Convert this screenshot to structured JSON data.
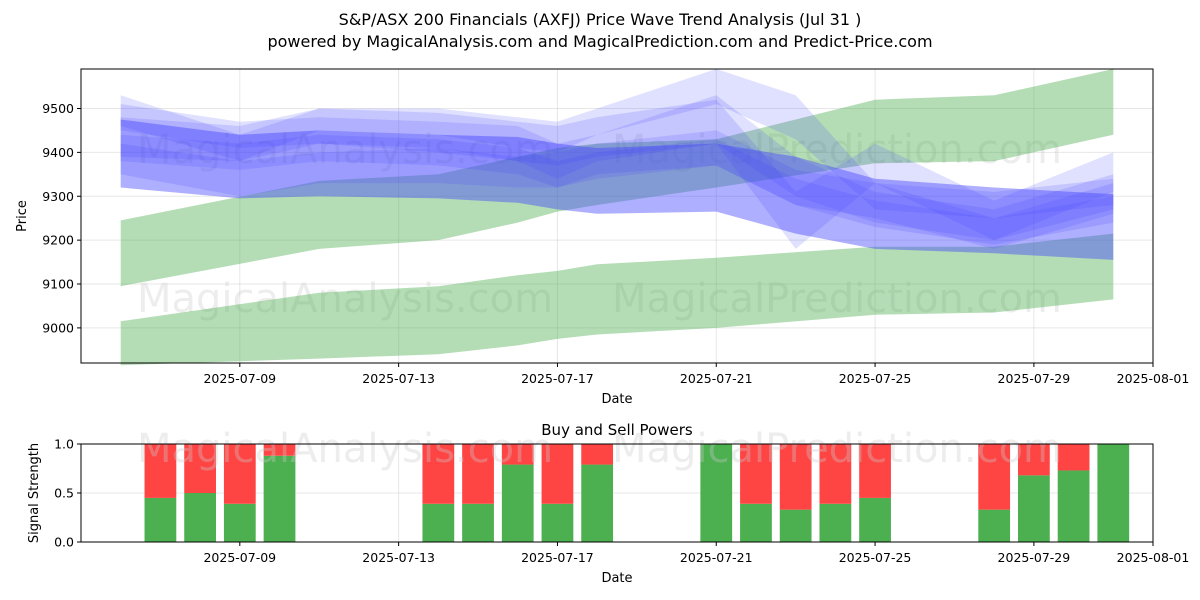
{
  "chart_data": [
    {
      "type": "area",
      "title": "S&P/ASX 200 Financials (AXFJ) Price Wave Trend Analysis (Jul 31 )",
      "subtitle": "powered by MagicalAnalysis.com and MagicalPrediction.com and Predict-Price.com",
      "xlabel": "Date",
      "ylabel": "Price",
      "xlim": [
        "2025-07-05",
        "2025-08-01"
      ],
      "ylim": [
        8920,
        9590
      ],
      "x_ticks": [
        "2025-07-09",
        "2025-07-13",
        "2025-07-17",
        "2025-07-21",
        "2025-07-25",
        "2025-07-29",
        "2025-08-01"
      ],
      "y_ticks": [
        9000,
        9100,
        9200,
        9300,
        9400,
        9500
      ],
      "grid": true,
      "watermarks": [
        "MagicalAnalysis.com",
        "MagicalPrediction.com"
      ],
      "colors": {
        "trend_band": "#4caf50",
        "wave_band": "#4040ff"
      },
      "trend_bands": [
        {
          "name": "upper-trend-channel",
          "x": [
            "2025-07-06",
            "2025-07-11",
            "2025-07-14",
            "2025-07-16",
            "2025-07-17",
            "2025-07-18",
            "2025-07-21",
            "2025-07-25",
            "2025-07-28",
            "2025-07-31"
          ],
          "upper": [
            9245,
            9335,
            9350,
            9390,
            9410,
            9420,
            9430,
            9520,
            9530,
            9590
          ],
          "lower": [
            9095,
            9180,
            9200,
            9240,
            9265,
            9280,
            9320,
            9375,
            9380,
            9440
          ]
        },
        {
          "name": "lower-trend-channel",
          "x": [
            "2025-07-06",
            "2025-07-11",
            "2025-07-14",
            "2025-07-16",
            "2025-07-17",
            "2025-07-18",
            "2025-07-21",
            "2025-07-25",
            "2025-07-28",
            "2025-07-31"
          ],
          "upper": [
            9015,
            9080,
            9095,
            9120,
            9130,
            9145,
            9160,
            9185,
            9185,
            9215
          ],
          "lower": [
            8915,
            8930,
            8940,
            8960,
            8975,
            8985,
            9000,
            9030,
            9035,
            9065
          ]
        }
      ],
      "wave_bands": [
        {
          "name": "wave-1",
          "x": [
            "2025-07-06",
            "2025-07-09",
            "2025-07-11",
            "2025-07-14",
            "2025-07-16",
            "2025-07-17",
            "2025-07-18",
            "2025-07-21",
            "2025-07-23",
            "2025-07-25",
            "2025-07-28",
            "2025-07-31"
          ],
          "upper": [
            9475,
            9440,
            9450,
            9440,
            9435,
            9420,
            9410,
            9420,
            9390,
            9340,
            9320,
            9305
          ],
          "lower": [
            9320,
            9295,
            9300,
            9295,
            9285,
            9270,
            9260,
            9265,
            9215,
            9180,
            9170,
            9155
          ]
        },
        {
          "name": "wave-2",
          "x": [
            "2025-07-06",
            "2025-07-09",
            "2025-07-11",
            "2025-07-14",
            "2025-07-16",
            "2025-07-17",
            "2025-07-18",
            "2025-07-21",
            "2025-07-23",
            "2025-07-25",
            "2025-07-28",
            "2025-07-31"
          ],
          "upper": [
            9510,
            9470,
            9480,
            9470,
            9460,
            9420,
            9440,
            9530,
            9390,
            9310,
            9270,
            9350
          ],
          "lower": [
            9450,
            9410,
            9420,
            9400,
            9380,
            9340,
            9380,
            9420,
            9300,
            9240,
            9200,
            9270
          ]
        },
        {
          "name": "wave-3",
          "x": [
            "2025-07-06",
            "2025-07-09",
            "2025-07-11",
            "2025-07-14",
            "2025-07-16",
            "2025-07-17",
            "2025-07-18",
            "2025-07-21",
            "2025-07-23",
            "2025-07-25",
            "2025-07-28",
            "2025-07-31"
          ],
          "upper": [
            9420,
            9380,
            9400,
            9410,
            9390,
            9400,
            9420,
            9450,
            9360,
            9330,
            9250,
            9330
          ],
          "lower": [
            9350,
            9300,
            9330,
            9330,
            9320,
            9320,
            9350,
            9370,
            9280,
            9250,
            9180,
            9260
          ]
        },
        {
          "name": "wave-4",
          "x": [
            "2025-07-06",
            "2025-07-09",
            "2025-07-11",
            "2025-07-14",
            "2025-07-16",
            "2025-07-17",
            "2025-07-18",
            "2025-07-21",
            "2025-07-23",
            "2025-07-25",
            "2025-07-28",
            "2025-07-31"
          ],
          "upper": [
            9480,
            9460,
            9500,
            9490,
            9470,
            9460,
            9480,
            9520,
            9310,
            9420,
            9290,
            9400
          ],
          "lower": [
            9390,
            9380,
            9420,
            9410,
            9380,
            9370,
            9390,
            9420,
            9180,
            9330,
            9200,
            9310
          ]
        },
        {
          "name": "wave-5",
          "x": [
            "2025-07-06",
            "2025-07-09",
            "2025-07-11",
            "2025-07-14",
            "2025-07-16",
            "2025-07-17",
            "2025-07-18",
            "2025-07-21",
            "2025-07-23",
            "2025-07-25",
            "2025-07-28",
            "2025-07-31"
          ],
          "upper": [
            9440,
            9420,
            9440,
            9430,
            9410,
            9380,
            9400,
            9430,
            9340,
            9290,
            9250,
            9300
          ],
          "lower": [
            9380,
            9360,
            9380,
            9370,
            9350,
            9320,
            9340,
            9370,
            9280,
            9230,
            9190,
            9240
          ]
        },
        {
          "name": "wave-6",
          "x": [
            "2025-07-06",
            "2025-07-09",
            "2025-07-11",
            "2025-07-14",
            "2025-07-16",
            "2025-07-17",
            "2025-07-18",
            "2025-07-21",
            "2025-07-23",
            "2025-07-25",
            "2025-07-28",
            "2025-07-31"
          ],
          "upper": [
            9530,
            9440,
            9500,
            9500,
            9480,
            9470,
            9500,
            9590,
            9530,
            9330,
            9310,
            9340
          ],
          "lower": [
            9460,
            9380,
            9450,
            9440,
            9410,
            9400,
            9440,
            9510,
            9430,
            9270,
            9250,
            9280
          ]
        }
      ]
    },
    {
      "type": "bar",
      "title": "Buy and Sell Powers",
      "xlabel": "Date",
      "ylabel": "Signal Strength",
      "xlim": [
        "2025-07-05",
        "2025-08-01"
      ],
      "ylim": [
        0,
        1.0
      ],
      "x_ticks": [
        "2025-07-09",
        "2025-07-13",
        "2025-07-17",
        "2025-07-21",
        "2025-07-25",
        "2025-07-29",
        "2025-08-01"
      ],
      "y_ticks": [
        0.0,
        0.5,
        1.0
      ],
      "grid": true,
      "colors": {
        "buy": "#4caf50",
        "sell": "#ff4444"
      },
      "watermarks": [
        "MagicalAnalysis.com",
        "MagicalPrediction.com"
      ],
      "categories": [
        "2025-07-07",
        "2025-07-08",
        "2025-07-09",
        "2025-07-10",
        "2025-07-14",
        "2025-07-15",
        "2025-07-16",
        "2025-07-17",
        "2025-07-18",
        "2025-07-21",
        "2025-07-22",
        "2025-07-23",
        "2025-07-24",
        "2025-07-25",
        "2025-07-28",
        "2025-07-29",
        "2025-07-30",
        "2025-07-31"
      ],
      "series": [
        {
          "name": "Buy Power",
          "values": [
            0.45,
            0.5,
            0.39,
            0.88,
            0.39,
            0.39,
            0.79,
            0.39,
            0.79,
            1.0,
            0.39,
            0.33,
            0.39,
            0.45,
            0.33,
            0.68,
            0.73,
            1.0
          ]
        },
        {
          "name": "Sell Power",
          "values": [
            0.55,
            0.5,
            0.61,
            0.12,
            0.61,
            0.61,
            0.21,
            0.61,
            0.21,
            0.0,
            0.61,
            0.67,
            0.61,
            0.55,
            0.67,
            0.32,
            0.27,
            0.0
          ]
        }
      ]
    }
  ]
}
